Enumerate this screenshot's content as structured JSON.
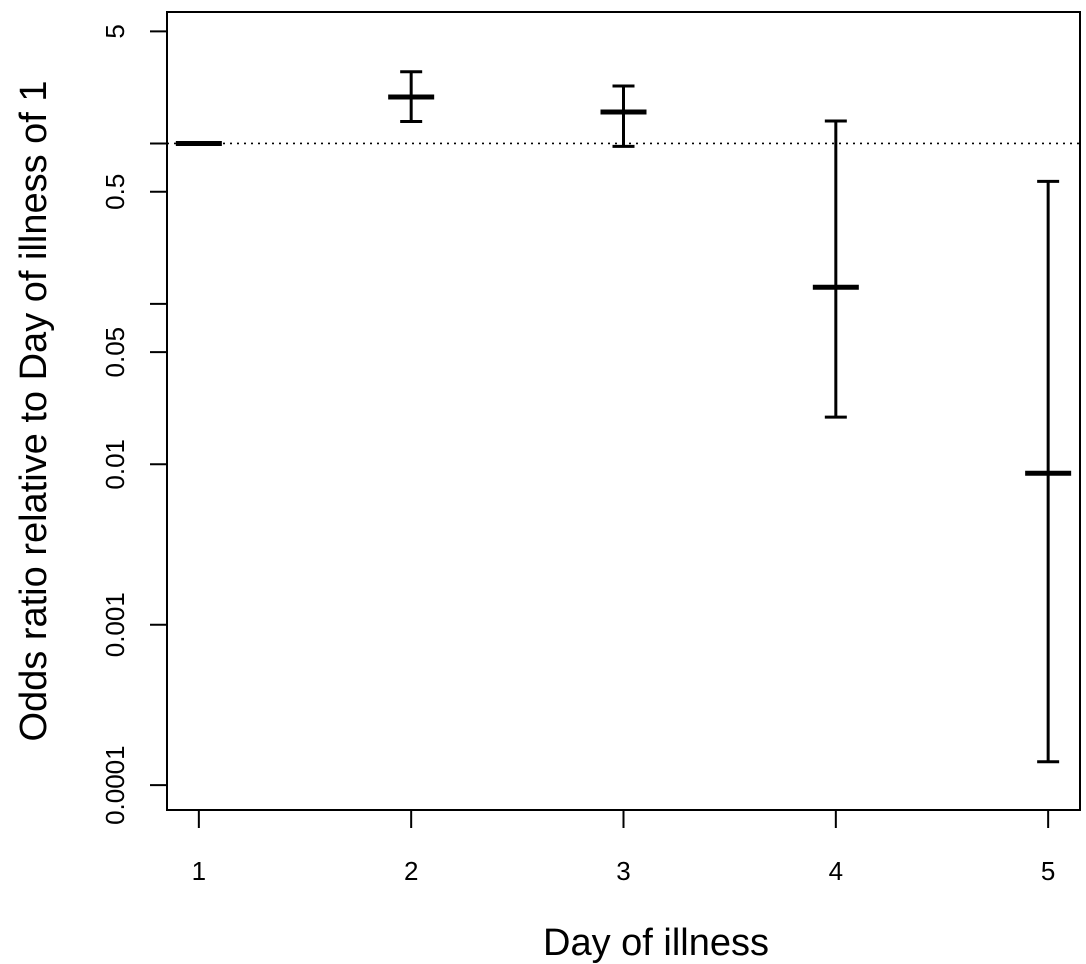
{
  "chart_data": {
    "type": "scatter",
    "xlabel": "Day of illness",
    "ylabel": "Odds ratio relative to Day of illness of 1",
    "y_scale": "log",
    "x_ticks": [
      "1",
      "2",
      "3",
      "4",
      "5"
    ],
    "y_ticks": [
      {
        "value": 0.0001,
        "label": "0.0001"
      },
      {
        "value": 0.001,
        "label": "0.001"
      },
      {
        "value": 0.01,
        "label": "0.01"
      },
      {
        "value": 0.05,
        "label": "0.05"
      },
      {
        "value": 0.5,
        "label": "0.5"
      },
      {
        "value": 5,
        "label": "5"
      }
    ],
    "y_minor_ticks": [
      0.1,
      1
    ],
    "reference_line": {
      "y": 1,
      "style": "dotted"
    },
    "xlim": [
      0.85,
      5.15
    ],
    "ylim": [
      7e-05,
      6.6
    ],
    "points": [
      {
        "x": 1,
        "estimate": 1.0,
        "lower": 1.0,
        "upper": 1.0
      },
      {
        "x": 2,
        "estimate": 1.95,
        "lower": 1.37,
        "upper": 2.8
      },
      {
        "x": 3,
        "estimate": 1.57,
        "lower": 0.96,
        "upper": 2.28
      },
      {
        "x": 4,
        "estimate": 0.127,
        "lower": 0.0197,
        "upper": 1.38
      },
      {
        "x": 5,
        "estimate": 0.0088,
        "lower": 0.00014,
        "upper": 0.58
      }
    ],
    "grid": false,
    "legend": "none"
  }
}
